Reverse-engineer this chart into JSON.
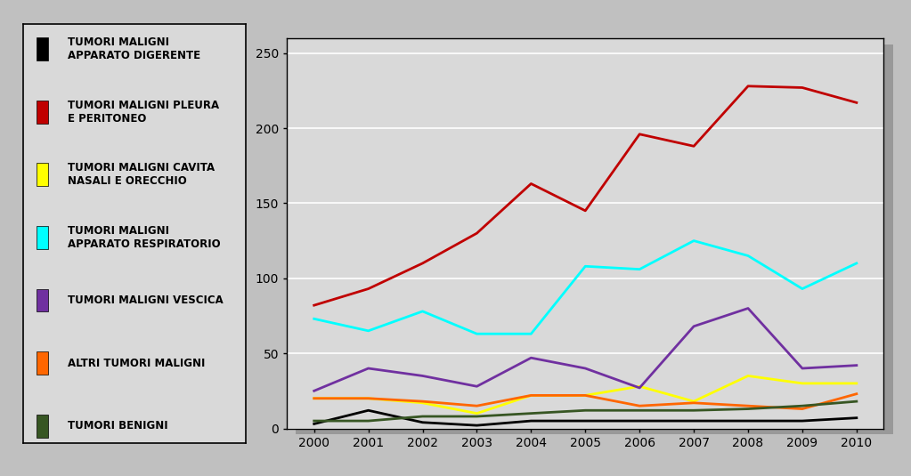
{
  "years": [
    2000,
    2001,
    2002,
    2003,
    2004,
    2005,
    2006,
    2007,
    2008,
    2009,
    2010
  ],
  "series": [
    {
      "label": "TUMORI MALIGNI\nAPPARATO DIGERENTE",
      "color": "#000000",
      "values": [
        3,
        12,
        4,
        2,
        5,
        5,
        5,
        5,
        5,
        5,
        7
      ]
    },
    {
      "label": "TUMORI MALIGNI PLEURA\nE PERITONEO",
      "color": "#C00000",
      "values": [
        82,
        93,
        110,
        130,
        163,
        145,
        196,
        188,
        228,
        227,
        217
      ]
    },
    {
      "label": "TUMORI MALIGNI CAVITA\nNASALI E ORECCHIO",
      "color": "#FFFF00",
      "values": [
        20,
        20,
        17,
        10,
        22,
        22,
        28,
        18,
        35,
        30,
        30
      ]
    },
    {
      "label": "TUMORI MALIGNI\nAPPARATO RESPIRATORIO",
      "color": "#00FFFF",
      "values": [
        73,
        65,
        78,
        63,
        63,
        108,
        106,
        125,
        115,
        93,
        110
      ]
    },
    {
      "label": "TUMORI MALIGNI VESCICA",
      "color": "#7030A0",
      "values": [
        25,
        40,
        35,
        28,
        47,
        40,
        27,
        68,
        80,
        40,
        42
      ]
    },
    {
      "label": "ALTRI TUMORI MALIGNI",
      "color": "#FF6600",
      "values": [
        20,
        20,
        18,
        15,
        22,
        22,
        15,
        17,
        15,
        13,
        23
      ]
    },
    {
      "label": "TUMORI BENIGNI",
      "color": "#375623",
      "values": [
        5,
        5,
        8,
        8,
        10,
        12,
        12,
        12,
        13,
        15,
        18
      ]
    }
  ],
  "ylim": [
    0,
    260
  ],
  "yticks": [
    0,
    50,
    100,
    150,
    200,
    250
  ],
  "background_color": "#C0C0C0",
  "plot_background": "#D9D9D9",
  "legend_background": "#D9D9D9",
  "legend_border": "#000000",
  "grid_color": "#FFFFFF",
  "shadow_color": "#999999",
  "line_width": 2.0,
  "tick_fontsize": 10,
  "legend_fontsize": 8.5
}
